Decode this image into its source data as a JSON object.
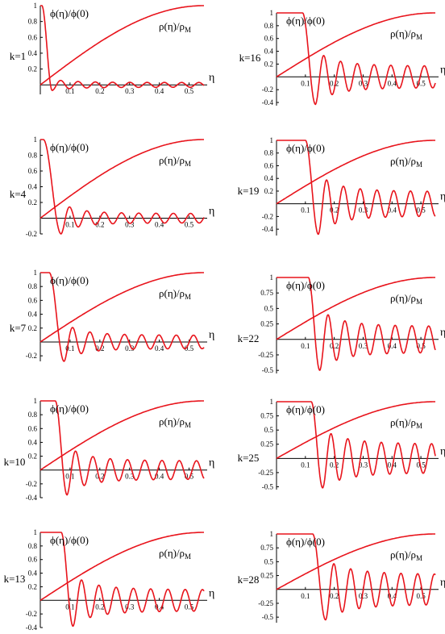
{
  "figure": {
    "line_color": "#e8141c"
  },
  "chart_data": [
    {
      "type": "line",
      "panel": "k=1",
      "k_label": "k=1",
      "k": 1,
      "phi_label": "ϕ(η)/ϕ(0)",
      "rho_label_main": "ρ(η)/ρ",
      "rho_label_sub": "M",
      "xlabel": "η",
      "xlim": [
        0,
        0.55
      ],
      "ylim": [
        -0.12,
        1.0
      ],
      "x_ticks": [
        "0.1",
        "0.2",
        "0.3",
        "0.4",
        "0.5"
      ],
      "x_tick_values": [
        0.1,
        0.2,
        0.3,
        0.4,
        0.5
      ],
      "y_ticks": [
        "0.2",
        "0.4",
        "0.6",
        "0.8",
        "1"
      ],
      "y_tick_values": [
        0.2,
        0.4,
        0.6,
        0.8,
        1.0
      ],
      "series": [
        {
          "x_cut": 0.005,
          "first_min_x": 0.04,
          "first_min_y": -0.07,
          "oscillation_amp": 0.05
        }
      ]
    },
    {
      "type": "line",
      "panel": "k=4",
      "k_label": "k=4",
      "k": 4,
      "phi_label": "ϕ(η)/ϕ(0)",
      "rho_label_main": "ρ(η)/ρ",
      "rho_label_sub": "M",
      "xlabel": "η",
      "xlim": [
        0,
        0.55
      ],
      "ylim": [
        -0.2,
        1.0
      ],
      "x_ticks": [
        "0.1",
        "0.2",
        "0.3",
        "0.4",
        "0.5"
      ],
      "x_tick_values": [
        0.1,
        0.2,
        0.3,
        0.4,
        0.5
      ],
      "y_ticks": [
        "-0.2",
        "0.2",
        "0.4",
        "0.6",
        "0.8",
        "1"
      ],
      "y_tick_values": [
        -0.2,
        0.2,
        0.4,
        0.6,
        0.8,
        1.0
      ],
      "series": [
        {
          "x_cut": 0.01,
          "first_min_x": 0.07,
          "first_min_y": -0.2,
          "oscillation_amp": 0.1
        }
      ]
    },
    {
      "type": "line",
      "panel": "k=7",
      "k_label": "k=7",
      "k": 7,
      "phi_label": "ϕ(η)/ϕ(0)",
      "rho_label_main": "ρ(η)/ρ",
      "rho_label_sub": "M",
      "xlabel": "η",
      "xlim": [
        0,
        0.55
      ],
      "ylim": [
        -0.28,
        1.0
      ],
      "x_ticks": [
        "0.1",
        "0.2",
        "0.3",
        "0.4",
        "0.5"
      ],
      "x_tick_values": [
        0.1,
        0.2,
        0.3,
        0.4,
        0.5
      ],
      "y_ticks": [
        "-0.2",
        "0.2",
        "0.4",
        "0.6",
        "0.8",
        "1"
      ],
      "y_tick_values": [
        -0.2,
        0.2,
        0.4,
        0.6,
        0.8,
        1.0
      ],
      "series": [
        {
          "x_cut": 0.03,
          "first_min_x": 0.08,
          "first_min_y": -0.28,
          "oscillation_amp": 0.16
        }
      ]
    },
    {
      "type": "line",
      "panel": "k=10",
      "k_label": "k=10",
      "k": 10,
      "phi_label": "ϕ(η)/ϕ(0)",
      "rho_label_main": "ρ(η)/ρ",
      "rho_label_sub": "M",
      "xlabel": "η",
      "xlim": [
        0,
        0.55
      ],
      "ylim": [
        -0.4,
        1.0
      ],
      "x_ticks": [
        "0.1",
        "0.2",
        "0.3",
        "0.4",
        "0.5"
      ],
      "x_tick_values": [
        0.1,
        0.2,
        0.3,
        0.4,
        0.5
      ],
      "y_ticks": [
        "-0.4",
        "-0.2",
        "0.2",
        "0.4",
        "0.6",
        "0.8",
        "1"
      ],
      "y_tick_values": [
        -0.4,
        -0.2,
        0.2,
        0.4,
        0.6,
        0.8,
        1.0
      ],
      "series": [
        {
          "x_cut": 0.05,
          "first_min_x": 0.09,
          "first_min_y": -0.36,
          "oscillation_amp": 0.22
        }
      ]
    },
    {
      "type": "line",
      "panel": "k=13",
      "k_label": "k=13",
      "k": 13,
      "phi_label": "ϕ(η)/ϕ(0)",
      "rho_label_main": "ρ(η)/ρ",
      "rho_label_sub": "M",
      "xlabel": "η",
      "xlim": [
        0,
        0.55
      ],
      "ylim": [
        -0.4,
        1.0
      ],
      "x_ticks": [
        "0.1",
        "0.2",
        "0.3",
        "0.4",
        "0.5"
      ],
      "x_tick_values": [
        0.1,
        0.2,
        0.3,
        0.4,
        0.5
      ],
      "y_ticks": [
        "-0.4",
        "-0.2",
        "0.2",
        "0.4",
        "0.6",
        "0.8",
        "1"
      ],
      "y_tick_values": [
        -0.4,
        -0.2,
        0.2,
        0.4,
        0.6,
        0.8,
        1.0
      ],
      "series": [
        {
          "x_cut": 0.07,
          "first_min_x": 0.11,
          "first_min_y": -0.38,
          "oscillation_amp": 0.26
        }
      ]
    },
    {
      "type": "line",
      "panel": "k=16",
      "k_label": "k=16",
      "k": 16,
      "phi_label": "ϕ(η)/ϕ(0)",
      "rho_label_main": "ρ(η)/ρ",
      "rho_label_sub": "M",
      "xlabel": "η",
      "xlim": [
        0,
        0.55
      ],
      "ylim": [
        -0.45,
        1.0
      ],
      "x_ticks": [
        "0.1",
        "0.2",
        "0.3",
        "0.4",
        "0.5"
      ],
      "x_tick_values": [
        0.1,
        0.2,
        0.3,
        0.4,
        0.5
      ],
      "y_ticks": [
        "-0.4",
        "-0.2",
        "0.2",
        "0.4",
        "0.6",
        "0.8",
        "1"
      ],
      "y_tick_values": [
        -0.4,
        -0.2,
        0.2,
        0.4,
        0.6,
        0.8,
        1.0
      ],
      "series": [
        {
          "x_cut": 0.09,
          "first_min_x": 0.135,
          "first_min_y": -0.43,
          "oscillation_amp": 0.28
        }
      ]
    },
    {
      "type": "line",
      "panel": "k=19",
      "k_label": "k=19",
      "k": 19,
      "phi_label": "ϕ(η)/ϕ(0)",
      "rho_label_main": "ρ(η)/ρ",
      "rho_label_sub": "M",
      "xlabel": "η",
      "xlim": [
        0,
        0.55
      ],
      "ylim": [
        -0.5,
        1.0
      ],
      "x_ticks": [
        "0.1",
        "0.2",
        "0.3",
        "0.4",
        "0.5"
      ],
      "x_tick_values": [
        0.1,
        0.2,
        0.3,
        0.4,
        0.5
      ],
      "y_ticks": [
        "-0.4",
        "-0.2",
        "0.2",
        "0.4",
        "0.6",
        "0.8",
        "1"
      ],
      "y_tick_values": [
        -0.4,
        -0.2,
        0.2,
        0.4,
        0.6,
        0.8,
        1.0
      ],
      "series": [
        {
          "x_cut": 0.1,
          "first_min_x": 0.145,
          "first_min_y": -0.48,
          "oscillation_amp": 0.32
        }
      ]
    },
    {
      "type": "line",
      "panel": "k=22",
      "k_label": "k=22",
      "k": 22,
      "phi_label": "ϕ(η)/ϕ(0)",
      "rho_label_main": "ρ(η)/ρ",
      "rho_label_sub": "M",
      "xlabel": "η",
      "xlim": [
        0,
        0.55
      ],
      "ylim": [
        -0.55,
        1.0
      ],
      "x_ticks": [
        "0.1",
        "0.2",
        "0.3",
        "0.4",
        "0.5"
      ],
      "x_tick_values": [
        0.1,
        0.2,
        0.3,
        0.4,
        0.5
      ],
      "y_ticks": [
        "-0.5",
        "-0.25",
        "0.25",
        "0.5",
        "0.75",
        "1"
      ],
      "y_tick_values": [
        -0.5,
        -0.25,
        0.25,
        0.5,
        0.75,
        1.0
      ],
      "series": [
        {
          "x_cut": 0.11,
          "first_min_x": 0.15,
          "first_min_y": -0.5,
          "oscillation_amp": 0.35
        }
      ]
    },
    {
      "type": "line",
      "panel": "k=25",
      "k_label": "k=25",
      "k": 25,
      "phi_label": "ϕ(η)/ϕ(0)",
      "rho_label_main": "ρ(η)/ρ",
      "rho_label_sub": "M",
      "xlabel": "η",
      "xlim": [
        0,
        0.55
      ],
      "ylim": [
        -0.55,
        1.0
      ],
      "x_ticks": [
        "0.1",
        "0.2",
        "0.3",
        "0.4",
        "0.5"
      ],
      "x_tick_values": [
        0.1,
        0.2,
        0.3,
        0.4,
        0.5
      ],
      "y_ticks": [
        "-0.5",
        "-0.25",
        "0.25",
        "0.5",
        "0.75",
        "1"
      ],
      "y_tick_values": [
        -0.5,
        -0.25,
        0.25,
        0.5,
        0.75,
        1.0
      ],
      "series": [
        {
          "x_cut": 0.12,
          "first_min_x": 0.16,
          "first_min_y": -0.52,
          "oscillation_amp": 0.42
        }
      ]
    },
    {
      "type": "line",
      "panel": "k=28",
      "k_label": "k=28",
      "k": 28,
      "phi_label": "ϕ(η)/ϕ(0)",
      "rho_label_main": "ρ(η)/ρ",
      "rho_label_sub": "M",
      "xlabel": "η",
      "xlim": [
        0,
        0.55
      ],
      "ylim": [
        -0.6,
        1.0
      ],
      "x_ticks": [
        "0.1",
        "0.2",
        "0.3",
        "0.4",
        "0.5"
      ],
      "x_tick_values": [
        0.1,
        0.2,
        0.3,
        0.4,
        0.5
      ],
      "y_ticks": [
        "-0.5",
        "-0.25",
        "0.25",
        "0.5",
        "0.75",
        "1"
      ],
      "y_tick_values": [
        -0.5,
        -0.25,
        0.25,
        0.5,
        0.75,
        1.0
      ],
      "series": [
        {
          "x_cut": 0.125,
          "first_min_x": 0.17,
          "first_min_y": -0.55,
          "oscillation_amp": 0.45
        }
      ]
    }
  ]
}
